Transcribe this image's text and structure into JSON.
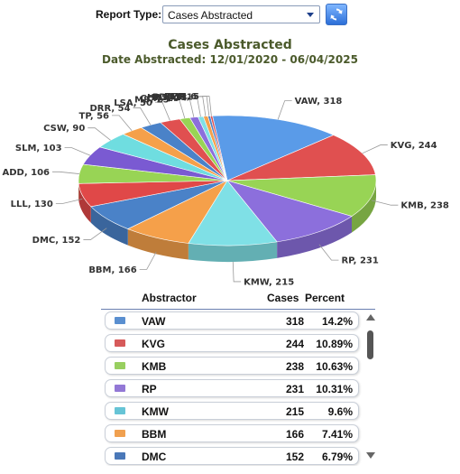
{
  "toolbar": {
    "report_type_label": "Report Type:",
    "report_type_value": "Cases Abstracted",
    "refresh_icon": "refresh-icon",
    "dropdown_icon": "chevron-down-icon"
  },
  "chart_data": {
    "type": "pie",
    "style": "3d",
    "title": "Cases Abstracted",
    "subtitle": "Date Abstracted: 12/01/2020 - 06/04/2025",
    "slices": [
      {
        "name": "VAW",
        "value": 318,
        "color": "#5a9be8"
      },
      {
        "name": "KVG",
        "value": 244,
        "color": "#e05050"
      },
      {
        "name": "KMB",
        "value": 238,
        "color": "#98d455"
      },
      {
        "name": "RP",
        "value": 231,
        "color": "#8c6fdc"
      },
      {
        "name": "KMW",
        "value": 215,
        "color": "#7fe0e6"
      },
      {
        "name": "BBM",
        "value": 166,
        "color": "#f5a04a"
      },
      {
        "name": "DMC",
        "value": 152,
        "color": "#4a82c8"
      },
      {
        "name": "LLL",
        "value": 130,
        "color": "#e04848"
      },
      {
        "name": "ADD",
        "value": 106,
        "color": "#98d455"
      },
      {
        "name": "SLM",
        "value": 103,
        "color": "#7a5ad2"
      },
      {
        "name": "CSW",
        "value": 90,
        "color": "#6fdde0"
      },
      {
        "name": "TP",
        "value": 56,
        "color": "#f5a04a"
      },
      {
        "name": "DRR",
        "value": 54,
        "color": "#4a82c8"
      },
      {
        "name": "LSA",
        "value": 50,
        "color": "#e05050"
      },
      {
        "name": "MS",
        "value": 25,
        "color": "#98d455"
      },
      {
        "name": "CCR",
        "value": 20,
        "color": "#8c6fdc"
      },
      {
        "name": "HRS",
        "value": 13,
        "color": "#7fe0e6"
      },
      {
        "name": "PDR",
        "value": 11,
        "color": "#f5a04a"
      },
      {
        "name": "EMF",
        "value": 6,
        "color": "#4a82c8"
      },
      {
        "name": "KEM",
        "value": 5,
        "color": "#e05050"
      }
    ]
  },
  "table": {
    "headers": {
      "abstractor": "Abstractor",
      "cases": "Cases",
      "percent": "Percent"
    },
    "rows": [
      {
        "name": "VAW",
        "cases": "318",
        "percent": "14.2%",
        "color": "#5a8fd0"
      },
      {
        "name": "KVG",
        "cases": "244",
        "percent": "10.89%",
        "color": "#d65a5a"
      },
      {
        "name": "KMB",
        "cases": "238",
        "percent": "10.63%",
        "color": "#98cf60"
      },
      {
        "name": "RP",
        "cases": "231",
        "percent": "10.31%",
        "color": "#9378d6"
      },
      {
        "name": "KMW",
        "cases": "215",
        "percent": "9.6%",
        "color": "#66c4d6"
      },
      {
        "name": "BBM",
        "cases": "166",
        "percent": "7.41%",
        "color": "#f0a050"
      },
      {
        "name": "DMC",
        "cases": "152",
        "percent": "6.79%",
        "color": "#4a78b8"
      }
    ]
  }
}
